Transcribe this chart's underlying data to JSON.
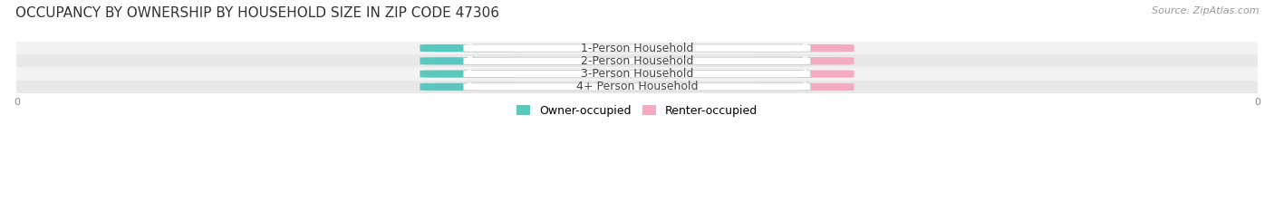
{
  "title": "OCCUPANCY BY OWNERSHIP BY HOUSEHOLD SIZE IN ZIP CODE 47306",
  "source": "Source: ZipAtlas.com",
  "categories": [
    "1-Person Household",
    "2-Person Household",
    "3-Person Household",
    "4+ Person Household"
  ],
  "owner_values": [
    0,
    0,
    0,
    0
  ],
  "renter_values": [
    0,
    0,
    0,
    0
  ],
  "owner_color": "#5BC8C0",
  "renter_color": "#F4AABF",
  "title_fontsize": 11,
  "source_fontsize": 8,
  "label_fontsize": 9,
  "value_fontsize": 7.5,
  "legend_owner": "Owner-occupied",
  "legend_renter": "Renter-occupied",
  "background_color": "#FFFFFF",
  "row_bg_colors": [
    "#F2F2F2",
    "#E8E8E8"
  ],
  "value_label_color": "#FFFFFF",
  "category_label_color": "#444444",
  "axis_label_color": "#888888",
  "axis_tick_fontsize": 8
}
